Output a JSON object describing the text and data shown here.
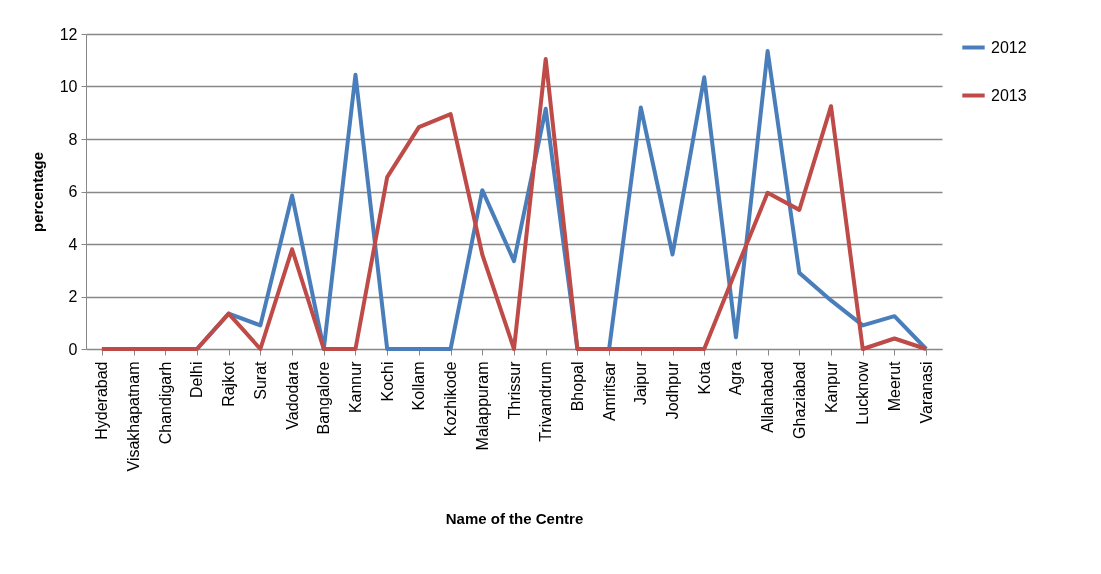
{
  "chart_data": {
    "type": "line",
    "xlabel": "Name of the Centre",
    "ylabel": "percentage",
    "categories": [
      "Hyderabad",
      "Visakhapatnam",
      "Chandigarh",
      "Delhi",
      "Rajkot",
      "Surat",
      "Vadodara",
      "Bangalore",
      "Kannur",
      "Kochi",
      "Kollam",
      "Kozhikode",
      "Malappuram",
      "Thrissur",
      "Trivandrum",
      "Bhopal",
      "Amritsar",
      "Jaipur",
      "Jodhpur",
      "Kota",
      "Agra",
      "Allahabad",
      "Ghaziabad",
      "Kanpur",
      "Lucknow",
      "Meerut",
      "Varanasi"
    ],
    "series": [
      {
        "name": "2012",
        "color": "#4a7ebb",
        "values": [
          null,
          null,
          null,
          0,
          1.35,
          0.9,
          5.85,
          0,
          10.45,
          0,
          0,
          0,
          6.05,
          3.35,
          9.15,
          0,
          0,
          9.2,
          3.6,
          10.35,
          0.45,
          11.35,
          2.9,
          1.85,
          0.9,
          1.25,
          0
        ]
      },
      {
        "name": "2013",
        "color": "#be4b48",
        "values": [
          0,
          0,
          0,
          0,
          1.35,
          0,
          3.8,
          0,
          0,
          6.55,
          8.45,
          8.95,
          3.6,
          0,
          11.05,
          0,
          0,
          0,
          0,
          0,
          3,
          5.95,
          5.3,
          9.25,
          0,
          0.4,
          0
        ]
      }
    ],
    "ylim": [
      0,
      12
    ],
    "yticks": [
      0,
      2,
      4,
      6,
      8,
      10,
      12
    ],
    "grid": "y",
    "legend": "right",
    "marker": "none",
    "line_style": "solid"
  }
}
